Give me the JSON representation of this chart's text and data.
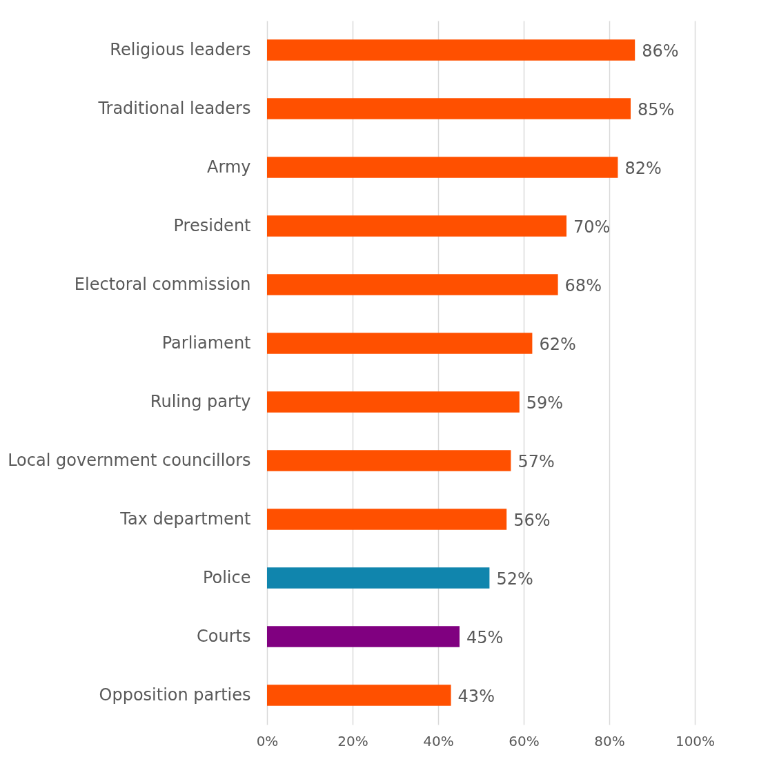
{
  "chart_data": {
    "type": "bar",
    "orientation": "horizontal",
    "categories": [
      "Religious leaders",
      "Traditional leaders",
      "Army",
      "President",
      "Electoral commission",
      "Parliament",
      "Ruling party",
      "Local government councillors",
      "Tax department",
      "Police",
      "Courts",
      "Opposition parties"
    ],
    "values": [
      86,
      85,
      82,
      70,
      68,
      62,
      59,
      57,
      56,
      52,
      45,
      43
    ],
    "colors": [
      "#ff5000",
      "#ff5000",
      "#ff5000",
      "#ff5000",
      "#ff5000",
      "#ff5000",
      "#ff5000",
      "#ff5000",
      "#ff5000",
      "#1085ad",
      "#800080",
      "#ff5000"
    ],
    "value_labels": [
      "86%",
      "85%",
      "82%",
      "70%",
      "68%",
      "62%",
      "59%",
      "57%",
      "56%",
      "52%",
      "45%",
      "43%"
    ],
    "xlim": [
      0,
      100
    ],
    "xticks": [
      {
        "value": 0,
        "label": "0%"
      },
      {
        "value": 20,
        "label": "20%"
      },
      {
        "value": 40,
        "label": "40%"
      },
      {
        "value": 60,
        "label": "60%"
      },
      {
        "value": 80,
        "label": "80%"
      },
      {
        "value": 100,
        "label": "100%"
      }
    ],
    "grid": "x",
    "legend": false
  }
}
